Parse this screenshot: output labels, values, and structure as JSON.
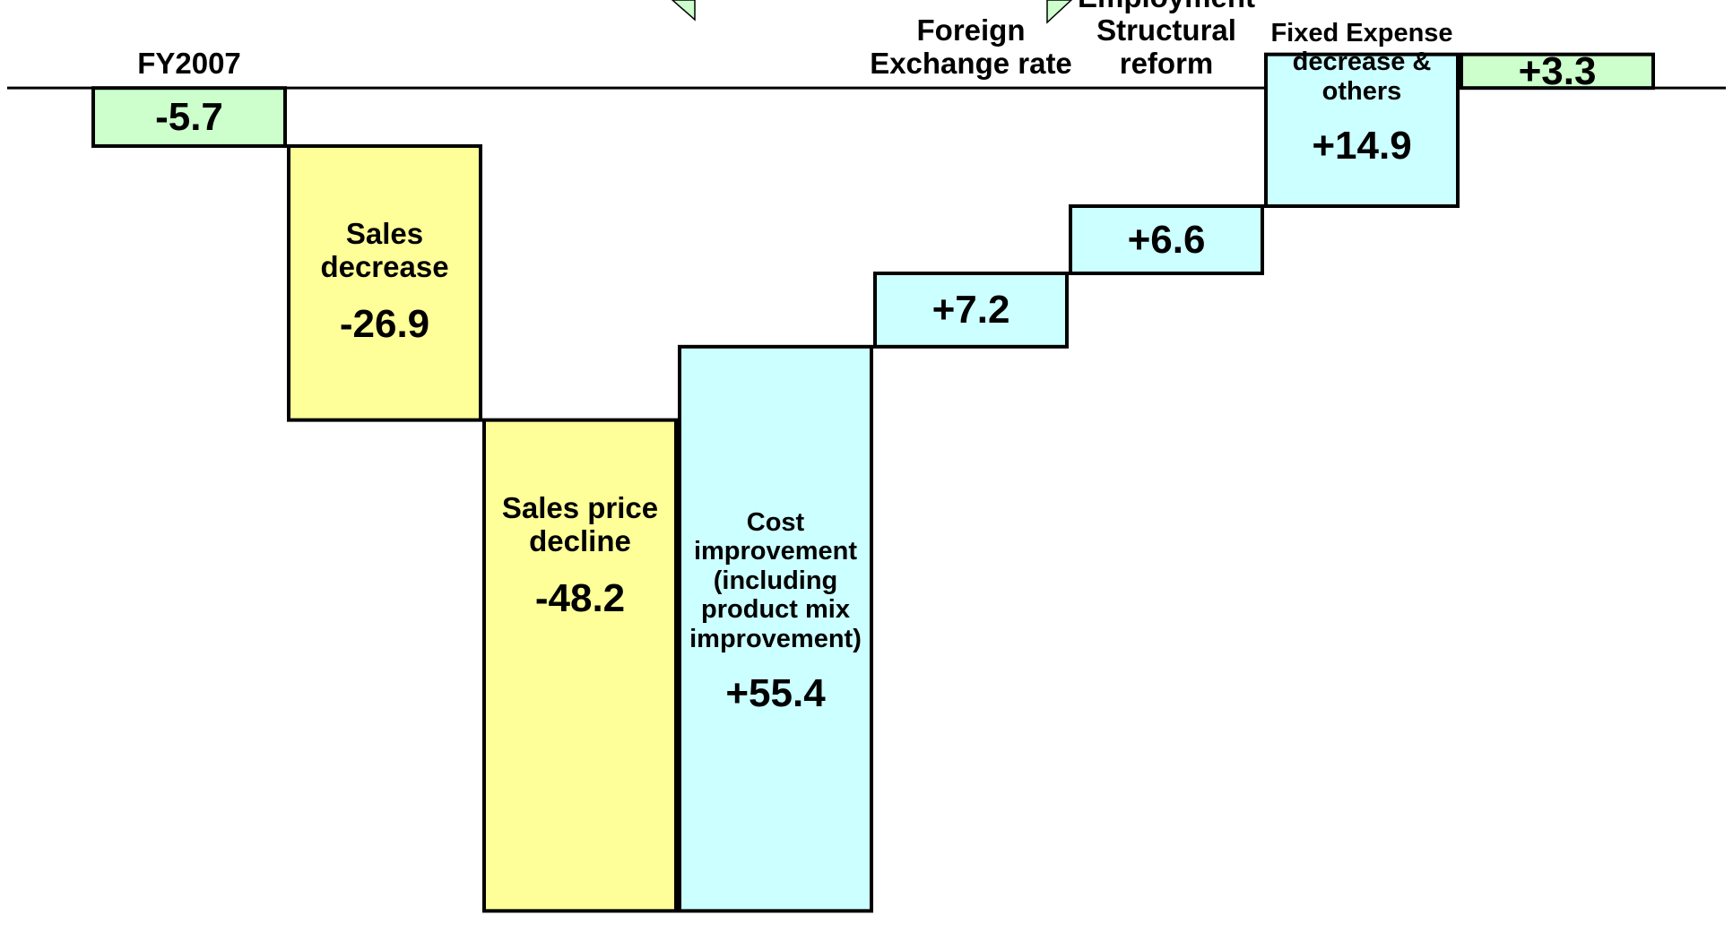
{
  "chart_data": {
    "type": "waterfall",
    "categories": [
      "FY2007",
      "Sales decrease",
      "Sales price decline",
      "Cost improvement (including product mix improvement)",
      "Foreign Exchange rate",
      "Employment Structural reform",
      "Fixed Expense decrease & others",
      null
    ],
    "values": [
      -5.7,
      -26.9,
      -48.2,
      55.4,
      7.2,
      6.6,
      14.9,
      3.3
    ],
    "value_labels": [
      "-5.7",
      "-26.9",
      "-48.2",
      "+55.4",
      "+7.2",
      "+6.6",
      "+14.9",
      "+3.3"
    ],
    "totals": [
      true,
      false,
      false,
      false,
      false,
      false,
      false,
      true
    ],
    "colors": [
      "#ccffcc",
      "#ffff99",
      "#ffff99",
      "#ccffff",
      "#ccffff",
      "#ccffff",
      "#ccffff",
      "#ccffcc"
    ],
    "ylim": [
      -82,
      6
    ]
  }
}
